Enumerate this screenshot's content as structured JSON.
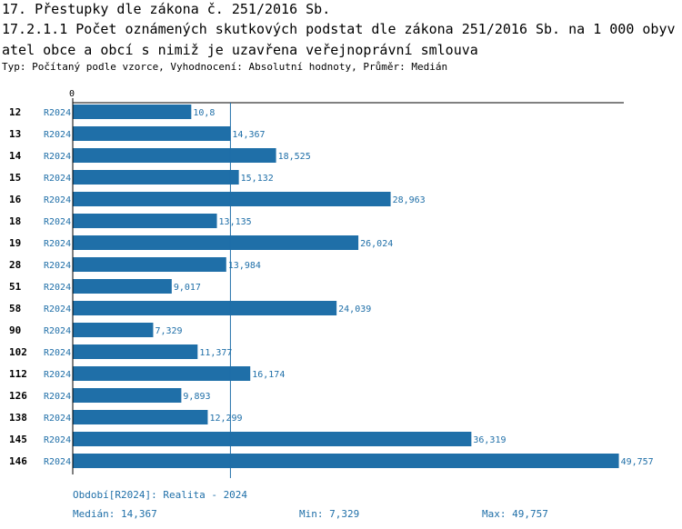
{
  "header": {
    "title": "17. Přestupky dle zákona č. 251/2016 Sb.",
    "chart_title": "17.2.1.1 Počet oznámených skutkových podstat dle zákona 251/2016 Sb. na 1 000 obyvatel obce a obcí s nimiž je uzavřena veřejnoprávní smlouva",
    "subtitle": "Typ: Počítaný podle vzorce, Vyhodnocení: Absolutní hodnoty, Průměr: Medián"
  },
  "chart_data": {
    "type": "bar",
    "orientation": "horizontal",
    "x_min_label": "0",
    "xlim": [
      0,
      50
    ],
    "period_label": "R2024",
    "categories": [
      "12",
      "13",
      "14",
      "15",
      "16",
      "18",
      "19",
      "28",
      "51",
      "58",
      "90",
      "102",
      "112",
      "126",
      "138",
      "145",
      "146"
    ],
    "values": [
      10.8,
      14.367,
      18.525,
      15.132,
      28.963,
      13.135,
      26.024,
      13.984,
      9.017,
      24.039,
      7.329,
      11.377,
      16.174,
      9.893,
      12.299,
      36.319,
      49.757
    ],
    "value_labels": [
      "10,8",
      "14,367",
      "18,525",
      "15,132",
      "28,963",
      "13,135",
      "26,024",
      "13,984",
      "9,017",
      "24,039",
      "7,329",
      "11,377",
      "16,174",
      "9,893",
      "12,299",
      "36,319",
      "49,757"
    ],
    "median": 14.367,
    "bar_color": "#1f6fa8",
    "label_color": "#1f6fa8",
    "median_line_color": "#1f6fa8"
  },
  "footer": {
    "period": "Období[R2024]: Realita - 2024",
    "median": "Medián: 14,367",
    "min": "Min: 7,329",
    "max": "Max: 49,757"
  }
}
